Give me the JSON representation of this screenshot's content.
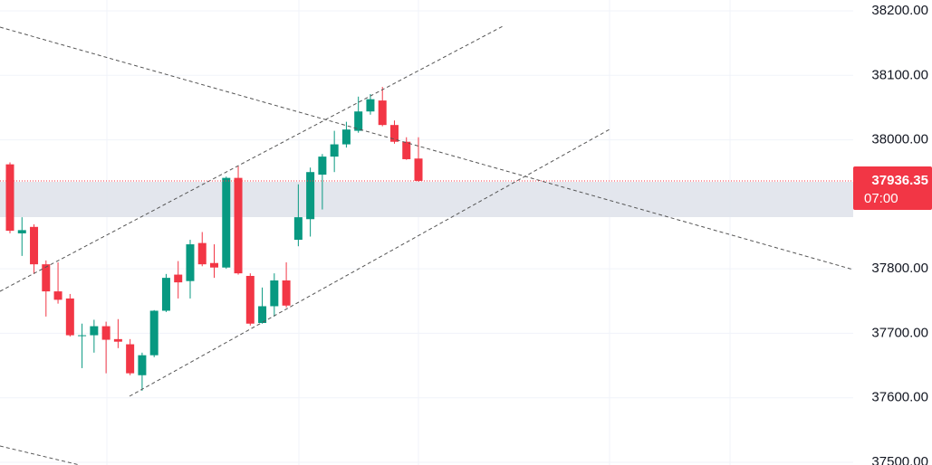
{
  "chart_data": {
    "type": "candlestick",
    "up_color": "#089981",
    "down_color": "#f23645",
    "open": [
      37962,
      37855,
      37865,
      37807,
      37765,
      37754,
      37697,
      37697,
      37711,
      37691,
      37683,
      37635,
      37666,
      37735,
      37791,
      37781,
      37840,
      37809,
      37802,
      37941,
      37789,
      37716,
      37742,
      37782,
      37845,
      37877,
      37946,
      37974,
      37993,
      38014,
      38044,
      38061,
      38023,
      37997,
      37971
    ],
    "high": [
      37965,
      37880,
      37869,
      37813,
      37810,
      37761,
      37715,
      37721,
      37718,
      37722,
      37691,
      37670,
      37736,
      37792,
      37812,
      37845,
      37857,
      37838,
      37943,
      37959,
      37793,
      37771,
      37793,
      37810,
      37931,
      37957,
      37978,
      38014,
      38028,
      38067,
      38071,
      38082,
      38030,
      38004,
      38004
    ],
    "low": [
      37855,
      37820,
      37792,
      37726,
      37746,
      37695,
      37646,
      37670,
      37638,
      37677,
      37635,
      37611,
      37663,
      37733,
      37754,
      37754,
      37804,
      37786,
      37800,
      37791,
      37712,
      37715,
      37726,
      37740,
      37835,
      37850,
      37892,
      37950,
      37988,
      38011,
      38039,
      38021,
      37994,
      37969,
      37935
    ],
    "close": [
      37859,
      37860,
      37807,
      37765,
      37752,
      37697,
      37697,
      37711,
      37690,
      37687,
      37638,
      37666,
      37735,
      37786,
      37779,
      37838,
      37807,
      37802,
      37941,
      37793,
      37715,
      37742,
      37782,
      37743,
      37880,
      37950,
      37974,
      37993,
      38016,
      38044,
      38063,
      38023,
      37997,
      37970,
      37936.35
    ],
    "ylim": [
      37500,
      38200
    ],
    "yticks": [
      {
        "value": 37500,
        "label": "37500.00"
      },
      {
        "value": 37600,
        "label": "37600.00"
      },
      {
        "value": 37700,
        "label": "37700.00"
      },
      {
        "value": 37800,
        "label": "37800.00"
      },
      {
        "value": 38000,
        "label": "38000.00"
      },
      {
        "value": 38100,
        "label": "38100.00"
      },
      {
        "value": 38200,
        "label": "38200.00"
      }
    ],
    "grid": true,
    "last_price": 37936.35,
    "last_price_time": "07:00"
  }
}
